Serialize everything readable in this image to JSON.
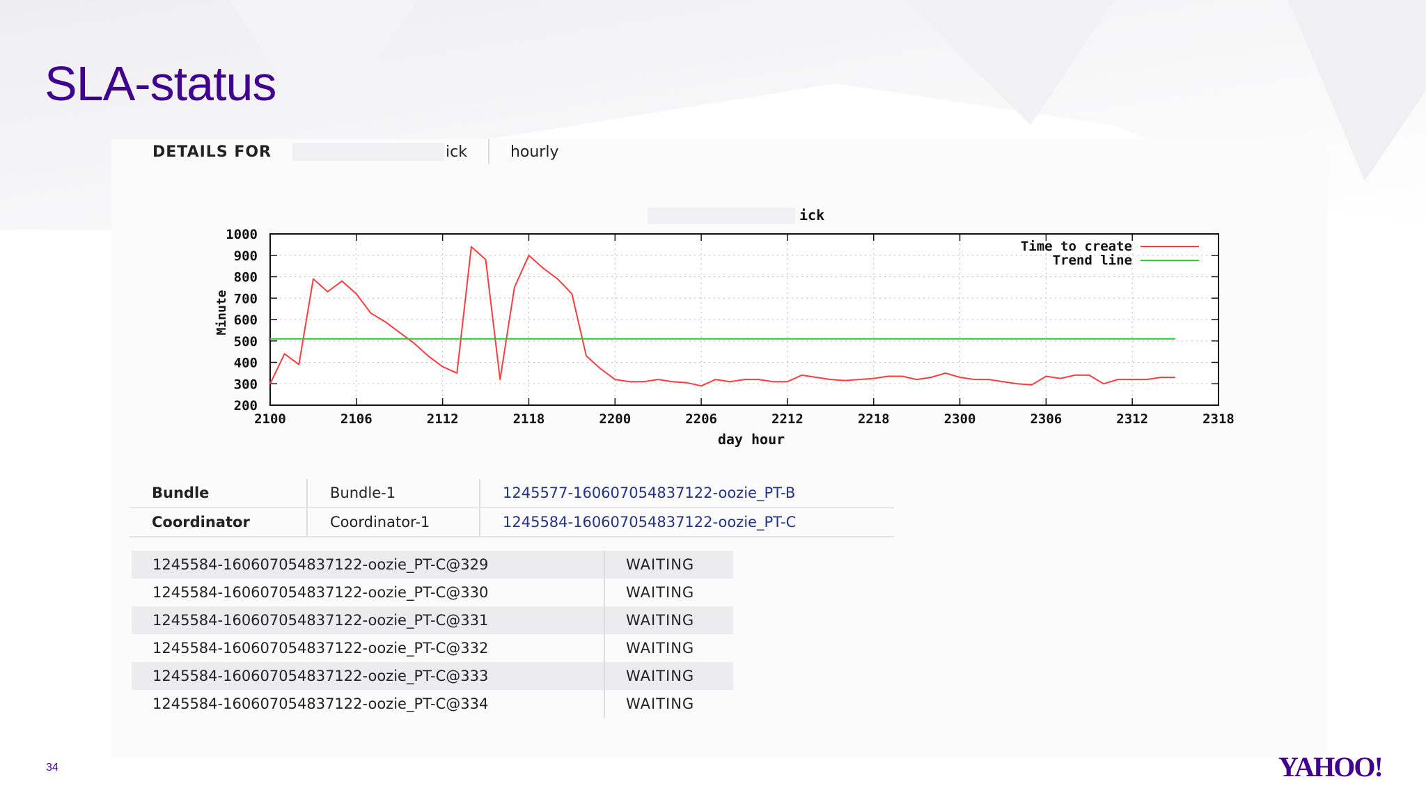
{
  "slide": {
    "title": "SLA-status",
    "number": "34",
    "logo": "YAHOO!"
  },
  "details": {
    "label": "DETAILS FOR",
    "name_suffix": "ick",
    "frequency": "hourly"
  },
  "chart_data": {
    "type": "line",
    "title": "ick",
    "xlabel": "day hour",
    "ylabel": "Minute",
    "x_tick_labels": [
      "2100",
      "2106",
      "2112",
      "2118",
      "2200",
      "2206",
      "2212",
      "2218",
      "2300",
      "2306",
      "2312",
      "2318"
    ],
    "y_tick_labels": [
      "200",
      "300",
      "400",
      "500",
      "600",
      "700",
      "800",
      "900",
      "1000"
    ],
    "xlim": [
      0,
      66
    ],
    "ylim": [
      200,
      1000
    ],
    "grid": true,
    "legend_position": "top-right",
    "series": [
      {
        "name": "Time to create",
        "color": "#ff3b3b",
        "x": [
          0,
          1,
          2,
          3,
          4,
          5,
          6,
          7,
          8,
          9,
          10,
          11,
          12,
          13,
          14,
          15,
          16,
          17,
          18,
          19,
          20,
          21,
          22,
          23,
          24,
          25,
          26,
          27,
          28,
          29,
          30,
          31,
          32,
          33,
          34,
          35,
          36,
          37,
          38,
          39,
          40,
          41,
          42,
          43,
          44,
          45,
          46,
          47,
          48,
          49,
          50,
          51,
          52,
          53,
          54,
          55,
          56,
          57,
          58,
          59,
          60,
          61,
          62,
          63
        ],
        "y": [
          300,
          440,
          390,
          790,
          730,
          780,
          720,
          630,
          590,
          540,
          490,
          430,
          380,
          350,
          940,
          880,
          320,
          750,
          900,
          840,
          790,
          720,
          430,
          370,
          320,
          310,
          310,
          320,
          310,
          305,
          290,
          320,
          310,
          320,
          320,
          310,
          310,
          340,
          330,
          320,
          315,
          320,
          325,
          335,
          335,
          320,
          330,
          350,
          330,
          320,
          320,
          310,
          300,
          295,
          335,
          325,
          340,
          340,
          300,
          320,
          320,
          320,
          330,
          330
        ]
      },
      {
        "name": "Trend line",
        "color": "#2ecc2e",
        "x": [
          0,
          63
        ],
        "y": [
          510,
          510
        ]
      }
    ]
  },
  "summary": [
    {
      "key": "Bundle",
      "value": "Bundle-1",
      "id": "1245577-160607054837122-oozie_PT-B"
    },
    {
      "key": "Coordinator",
      "value": "Coordinator-1",
      "id": "1245584-160607054837122-oozie_PT-C"
    }
  ],
  "actions": [
    {
      "id": "1245584-160607054837122-oozie_PT-C@329",
      "status": "WAITING"
    },
    {
      "id": "1245584-160607054837122-oozie_PT-C@330",
      "status": "WAITING"
    },
    {
      "id": "1245584-160607054837122-oozie_PT-C@331",
      "status": "WAITING"
    },
    {
      "id": "1245584-160607054837122-oozie_PT-C@332",
      "status": "WAITING"
    },
    {
      "id": "1245584-160607054837122-oozie_PT-C@333",
      "status": "WAITING"
    },
    {
      "id": "1245584-160607054837122-oozie_PT-C@334",
      "status": "WAITING"
    }
  ]
}
